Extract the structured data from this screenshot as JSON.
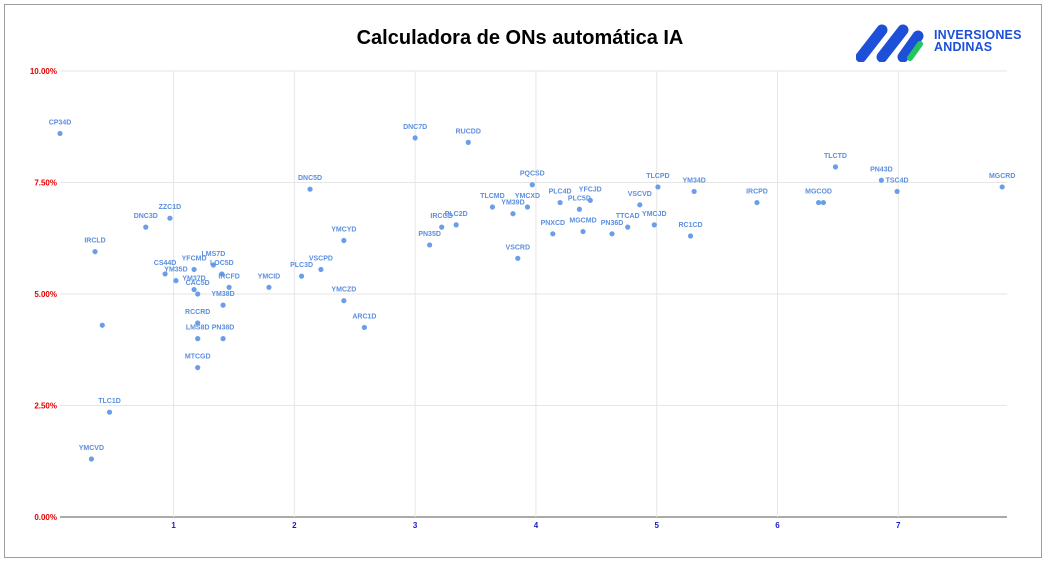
{
  "title": "Calculadora de ONs automática IA",
  "logo": {
    "line1": "INVERSIONES",
    "line2": "ANDINAS",
    "icon": "inversiones-andinas-logo-icon"
  },
  "colors": {
    "point": "#6a9ee8",
    "label": "#5b8fdf",
    "y_ticks": "#e60000",
    "x_ticks": "#1a1acc",
    "grid": "#e6e6e6",
    "logo_blue": "#1d4fd8",
    "logo_green": "#22c55e"
  },
  "chart_data": {
    "type": "scatter",
    "title": "Calculadora de ONs automática IA",
    "xlabel": "",
    "ylabel": "",
    "xlim": [
      0.06,
      7.9
    ],
    "ylim": [
      0,
      10
    ],
    "grid": true,
    "legend": "none",
    "x_ticks": [
      "1",
      "2",
      "3",
      "4",
      "5",
      "6",
      "7"
    ],
    "y_ticks": [
      "0.00%",
      "2.50%",
      "5.00%",
      "7.50%",
      "10.00%"
    ],
    "points": [
      {
        "label": "CP34D",
        "x": 0.06,
        "y": 8.6
      },
      {
        "label": "IRCLD",
        "x": 0.35,
        "y": 5.95
      },
      {
        "label": "",
        "x": 0.41,
        "y": 4.3
      },
      {
        "label": "TLC1D",
        "x": 0.47,
        "y": 2.35
      },
      {
        "label": "YMCVD",
        "x": 0.32,
        "y": 1.3
      },
      {
        "label": "DNC3D",
        "x": 0.77,
        "y": 6.5
      },
      {
        "label": "ZZC1D",
        "x": 0.97,
        "y": 6.7
      },
      {
        "label": "CS44D",
        "x": 0.93,
        "y": 5.45
      },
      {
        "label": "YM35D",
        "x": 1.02,
        "y": 5.3
      },
      {
        "label": "YFCMD",
        "x": 1.17,
        "y": 5.55
      },
      {
        "label": "LMS7D",
        "x": 1.33,
        "y": 5.65
      },
      {
        "label": "YM37D",
        "x": 1.17,
        "y": 5.1
      },
      {
        "label": "CAC5D",
        "x": 1.2,
        "y": 5.0
      },
      {
        "label": "LOC5D",
        "x": 1.4,
        "y": 5.45
      },
      {
        "label": "IRCFD",
        "x": 1.46,
        "y": 5.15
      },
      {
        "label": "YM38D",
        "x": 1.41,
        "y": 4.75
      },
      {
        "label": "RCCRD",
        "x": 1.2,
        "y": 4.35
      },
      {
        "label": "LMS8D",
        "x": 1.2,
        "y": 4.0
      },
      {
        "label": "PN38D",
        "x": 1.41,
        "y": 4.0
      },
      {
        "label": "MTCGD",
        "x": 1.2,
        "y": 3.35
      },
      {
        "label": "YMCID",
        "x": 1.79,
        "y": 5.15
      },
      {
        "label": "PLC3D",
        "x": 2.06,
        "y": 5.4
      },
      {
        "label": "VSCPD",
        "x": 2.22,
        "y": 5.55
      },
      {
        "label": "DNC5D",
        "x": 2.13,
        "y": 7.35
      },
      {
        "label": "YMCYD",
        "x": 2.41,
        "y": 6.2
      },
      {
        "label": "YMCZD",
        "x": 2.41,
        "y": 4.85
      },
      {
        "label": "ARC1D",
        "x": 2.58,
        "y": 4.25
      },
      {
        "label": "DNC7D",
        "x": 3.0,
        "y": 8.5
      },
      {
        "label": "RUCDD",
        "x": 3.44,
        "y": 8.4
      },
      {
        "label": "PN35D",
        "x": 3.12,
        "y": 6.1
      },
      {
        "label": "IRCGD",
        "x": 3.22,
        "y": 6.5
      },
      {
        "label": "PLC2D",
        "x": 3.34,
        "y": 6.55
      },
      {
        "label": "TLCMD",
        "x": 3.64,
        "y": 6.95
      },
      {
        "label": "YM39D",
        "x": 3.81,
        "y": 6.8
      },
      {
        "label": "YMCXD",
        "x": 3.93,
        "y": 6.95
      },
      {
        "label": "PQCSD",
        "x": 3.97,
        "y": 7.45
      },
      {
        "label": "VSCRD",
        "x": 3.85,
        "y": 5.8
      },
      {
        "label": "PNXCD",
        "x": 4.14,
        "y": 6.35
      },
      {
        "label": "PLC4D",
        "x": 4.2,
        "y": 7.05
      },
      {
        "label": "PLC5D",
        "x": 4.36,
        "y": 6.9
      },
      {
        "label": "YFCJD",
        "x": 4.45,
        "y": 7.1
      },
      {
        "label": "MGCMD",
        "x": 4.39,
        "y": 6.4
      },
      {
        "label": "PN36D",
        "x": 4.63,
        "y": 6.35
      },
      {
        "label": "TTCAD",
        "x": 4.76,
        "y": 6.5
      },
      {
        "label": "VSCVD",
        "x": 4.86,
        "y": 7.0
      },
      {
        "label": "YMCJD",
        "x": 4.98,
        "y": 6.55
      },
      {
        "label": "TLCPD",
        "x": 5.01,
        "y": 7.4
      },
      {
        "label": "RC1CD",
        "x": 5.28,
        "y": 6.3
      },
      {
        "label": "YM34D",
        "x": 5.31,
        "y": 7.3
      },
      {
        "label": "IRCPD",
        "x": 5.83,
        "y": 7.05
      },
      {
        "label": "MGCOD",
        "x": 6.34,
        "y": 7.05
      },
      {
        "label": "",
        "x": 6.38,
        "y": 7.05
      },
      {
        "label": "TLCTD",
        "x": 6.48,
        "y": 7.85
      },
      {
        "label": "PN43D",
        "x": 6.86,
        "y": 7.55
      },
      {
        "label": "TSC4D",
        "x": 6.99,
        "y": 7.3
      },
      {
        "label": "MGCRD",
        "x": 7.86,
        "y": 7.4
      }
    ]
  }
}
